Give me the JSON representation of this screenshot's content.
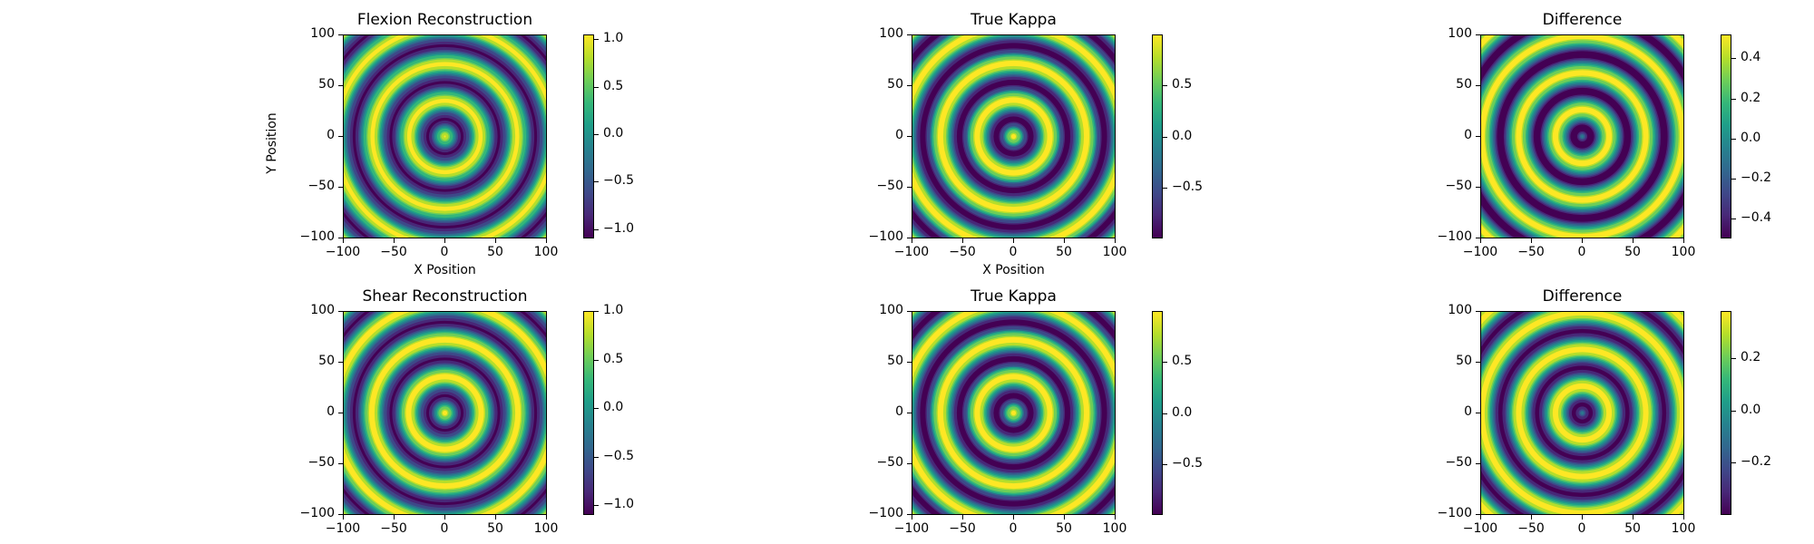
{
  "colormap": [
    "#440154",
    "#482878",
    "#3e4989",
    "#31688e",
    "#26828e",
    "#1f9e89",
    "#35b779",
    "#6ece58",
    "#b5de2b",
    "#fde725"
  ],
  "chart_data": [
    {
      "type": "heatmap",
      "title": "Flexion Reconstruction",
      "xlabel": "X Position",
      "ylabel": "Y Position",
      "xlim": [
        -100,
        100
      ],
      "ylim": [
        -100,
        100
      ],
      "xticks": [
        "−100",
        "−50",
        "0",
        "50",
        "100"
      ],
      "yticks": [
        "100",
        "50",
        "0",
        "−50",
        "−100"
      ],
      "field": {
        "kind": "rings",
        "amplitude": 1.0,
        "period": 36,
        "phase_deg": 0,
        "center": [
          0,
          0
        ]
      },
      "colorbar": {
        "range": [
          -1.1,
          1.05
        ],
        "ticks": [
          1.0,
          0.5,
          0.0,
          -0.5,
          -1.0
        ],
        "tick_labels": [
          "1.0",
          "0.5",
          "0.0",
          "−0.5",
          "−1.0"
        ]
      }
    },
    {
      "type": "heatmap",
      "title": "True Kappa",
      "xlabel": "X Position",
      "ylabel": "",
      "xlim": [
        -100,
        100
      ],
      "ylim": [
        -100,
        100
      ],
      "xticks": [
        "−100",
        "−50",
        "0",
        "50",
        "100"
      ],
      "yticks": [
        "100",
        "50",
        "0",
        "−50",
        "−100"
      ],
      "field": {
        "kind": "rings",
        "amplitude": 1.0,
        "period": 36,
        "phase_deg": 0,
        "center": [
          0,
          0
        ]
      },
      "colorbar": {
        "range": [
          -1.0,
          1.0
        ],
        "ticks": [
          0.5,
          0.0,
          -0.5
        ],
        "tick_labels": [
          "0.5",
          "0.0",
          "−0.5"
        ]
      }
    },
    {
      "type": "heatmap",
      "title": "Difference",
      "xlabel": "",
      "ylabel": "",
      "xlim": [
        -100,
        100
      ],
      "ylim": [
        -100,
        100
      ],
      "xticks": [
        "−100",
        "−50",
        "0",
        "50",
        "100"
      ],
      "yticks": [
        "100",
        "50",
        "0",
        "−50",
        "−100"
      ],
      "field": {
        "kind": "rings",
        "amplitude": 0.5,
        "period": 36,
        "phase_deg": 90,
        "center": [
          0,
          0
        ]
      },
      "colorbar": {
        "range": [
          -0.5,
          0.52
        ],
        "ticks": [
          0.4,
          0.2,
          0.0,
          -0.2,
          -0.4
        ],
        "tick_labels": [
          "0.4",
          "0.2",
          "0.0",
          "−0.2",
          "−0.4"
        ]
      }
    },
    {
      "type": "heatmap",
      "title": "Shear Reconstruction",
      "xlabel": "",
      "ylabel": "",
      "xlim": [
        -100,
        100
      ],
      "ylim": [
        -100,
        100
      ],
      "xticks": [
        "−100",
        "−50",
        "0",
        "50",
        "100"
      ],
      "yticks": [
        "100",
        "50",
        "0",
        "−50",
        "−100"
      ],
      "field": {
        "kind": "rings",
        "amplitude": 1.0,
        "period": 36,
        "phase_deg": 0,
        "center": [
          0,
          0
        ]
      },
      "colorbar": {
        "range": [
          -1.1,
          1.0
        ],
        "ticks": [
          1.0,
          0.5,
          0.0,
          -0.5,
          -1.0
        ],
        "tick_labels": [
          "1.0",
          "0.5",
          "0.0",
          "−0.5",
          "−1.0"
        ]
      }
    },
    {
      "type": "heatmap",
      "title": "True Kappa",
      "xlabel": "",
      "ylabel": "",
      "xlim": [
        -100,
        100
      ],
      "ylim": [
        -100,
        100
      ],
      "xticks": [
        "−100",
        "−50",
        "0",
        "50",
        "100"
      ],
      "yticks": [
        "100",
        "50",
        "0",
        "−50",
        "−100"
      ],
      "field": {
        "kind": "rings",
        "amplitude": 1.0,
        "period": 36,
        "phase_deg": 0,
        "center": [
          0,
          0
        ]
      },
      "colorbar": {
        "range": [
          -1.0,
          1.0
        ],
        "ticks": [
          0.5,
          0.0,
          -0.5
        ],
        "tick_labels": [
          "0.5",
          "0.0",
          "−0.5"
        ]
      }
    },
    {
      "type": "heatmap",
      "title": "Difference",
      "xlabel": "",
      "ylabel": "",
      "xlim": [
        -100,
        100
      ],
      "ylim": [
        -100,
        100
      ],
      "xticks": [
        "−100",
        "−50",
        "0",
        "50",
        "100"
      ],
      "yticks": [
        "100",
        "50",
        "0",
        "−50",
        "−100"
      ],
      "field": {
        "kind": "rings",
        "amplitude": 0.38,
        "period": 36,
        "phase_deg": 90,
        "center": [
          0,
          0
        ]
      },
      "colorbar": {
        "range": [
          -0.4,
          0.38
        ],
        "ticks": [
          0.2,
          0.0,
          -0.2
        ],
        "tick_labels": [
          "0.2",
          "0.0",
          "−0.2"
        ]
      }
    }
  ]
}
